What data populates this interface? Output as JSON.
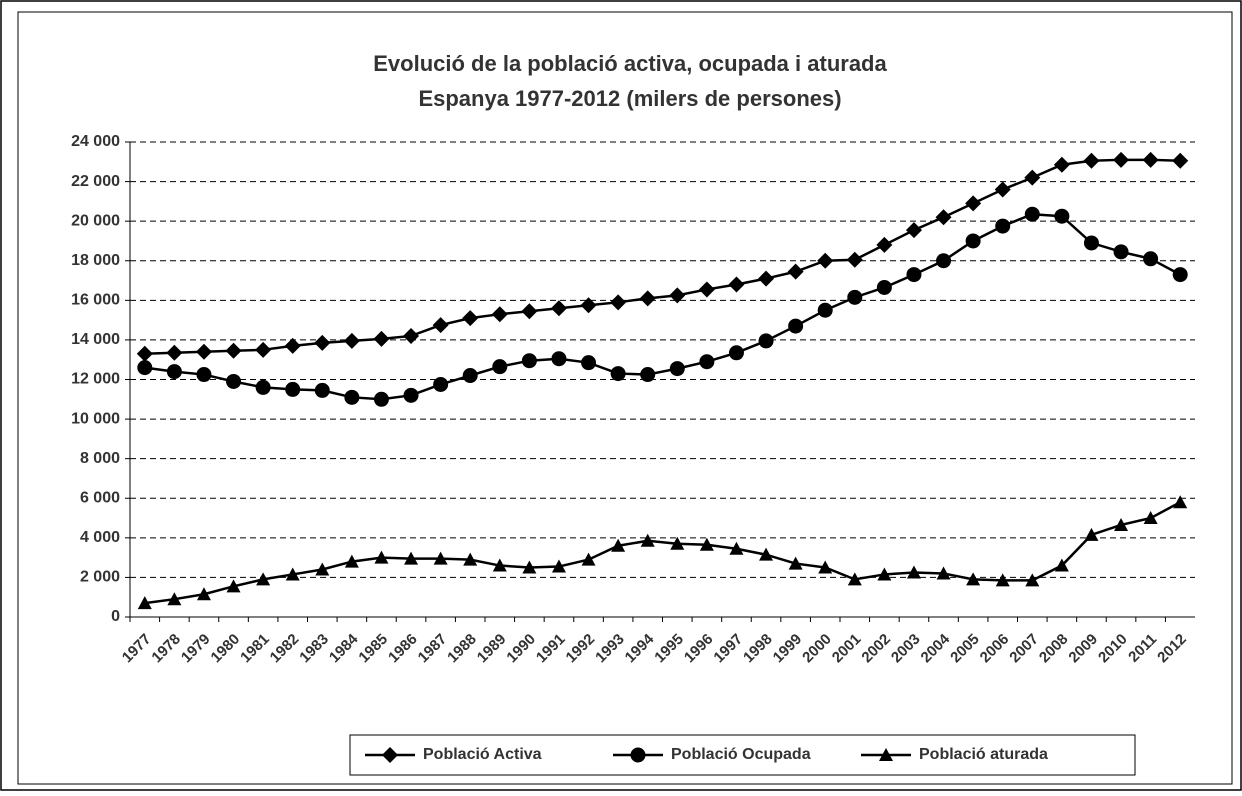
{
  "chart_data": {
    "type": "line",
    "title": "Evolució de la població activa, ocupada i aturada",
    "subtitle": "Espanya 1977-2012 (milers de persones)",
    "categories": [
      "1977",
      "1978",
      "1979",
      "1980",
      "1981",
      "1982",
      "1983",
      "1984",
      "1985",
      "1986",
      "1987",
      "1988",
      "1989",
      "1990",
      "1991",
      "1992",
      "1993",
      "1994",
      "1995",
      "1996",
      "1997",
      "1998",
      "1999",
      "2000",
      "2001",
      "2002",
      "2003",
      "2004",
      "2005",
      "2006",
      "2007",
      "2008",
      "2009",
      "2010",
      "2011",
      "2012"
    ],
    "series": [
      {
        "name": "Població Activa",
        "color": "#000000",
        "marker": "diamond",
        "values": [
          13300,
          13350,
          13400,
          13450,
          13500,
          13700,
          13850,
          13950,
          14050,
          14200,
          14750,
          15100,
          15300,
          15450,
          15600,
          15750,
          15900,
          16100,
          16250,
          16550,
          16800,
          17100,
          17450,
          18000,
          18050,
          18800,
          19550,
          20200,
          20900,
          21600,
          22200,
          22850,
          23050,
          23100,
          23100,
          23050
        ]
      },
      {
        "name": "Població Ocupada",
        "color": "#000000",
        "marker": "circle",
        "values": [
          12600,
          12400,
          12250,
          11900,
          11600,
          11500,
          11450,
          11100,
          11000,
          11200,
          11750,
          12200,
          12650,
          12950,
          13050,
          12850,
          12300,
          12250,
          12550,
          12900,
          13350,
          13950,
          14700,
          15500,
          16150,
          16650,
          17300,
          18000,
          19000,
          19750,
          20350,
          20250,
          18900,
          18450,
          18100,
          17300
        ]
      },
      {
        "name": "Població aturada",
        "color": "#000000",
        "marker": "triangle",
        "values": [
          700,
          900,
          1150,
          1550,
          1900,
          2150,
          2400,
          2800,
          3000,
          2950,
          2950,
          2900,
          2600,
          2500,
          2550,
          2900,
          3600,
          3850,
          3700,
          3650,
          3450,
          3150,
          2700,
          2500,
          1900,
          2150,
          2250,
          2200,
          1900,
          1850,
          1850,
          2600,
          4150,
          4650,
          5000,
          5800
        ]
      }
    ],
    "ylim": [
      0,
      24000
    ],
    "yticks": [
      0,
      {
        "value": 2000,
        "label": "2 000"
      },
      {
        "value": 4000,
        "label": "4 000"
      },
      {
        "value": 6000,
        "label": "6 000"
      },
      {
        "value": 8000,
        "label": "8 000"
      },
      {
        "value": 10000,
        "label": "10 000"
      },
      {
        "value": 12000,
        "label": "12 000"
      },
      {
        "value": 14000,
        "label": "14 000"
      },
      {
        "value": 16000,
        "label": "16 000"
      },
      {
        "value": 18000,
        "label": "18 000"
      },
      {
        "value": 20000,
        "label": "20 000"
      },
      {
        "value": 22000,
        "label": "22 000"
      },
      {
        "value": 24000,
        "label": "24 000"
      }
    ],
    "grid": true,
    "legend": "bottom"
  }
}
